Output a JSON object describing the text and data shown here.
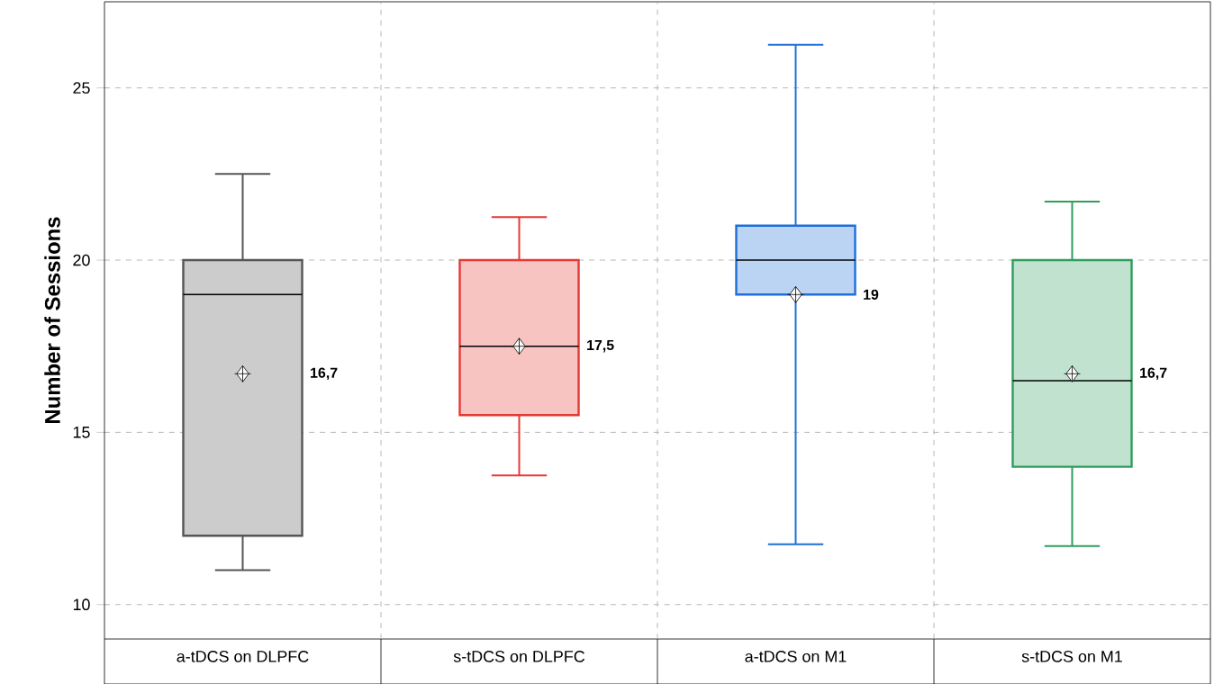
{
  "chart_data": {
    "type": "box",
    "ylabel": "Number of Sessions",
    "categories": [
      "a-tDCS on DLPFC",
      "s-tDCS on DLPFC",
      "a-tDCS on M1",
      "s-tDCS on M1"
    ],
    "boxes": [
      {
        "low": 11,
        "q1": 12,
        "median": 19,
        "q3": 20,
        "high": 22.5,
        "mean": 16.7
      },
      {
        "low": 13.75,
        "q1": 15.5,
        "median": 17.5,
        "q3": 20,
        "high": 21.25,
        "mean": 17.5
      },
      {
        "low": 11.75,
        "q1": 19,
        "median": 20,
        "q3": 21,
        "high": 26.25,
        "mean": 19
      },
      {
        "low": 11.7,
        "q1": 14,
        "median": 16.5,
        "q3": 20,
        "high": 21.7,
        "mean": 16.7
      }
    ],
    "colors": [
      "#555555",
      "#e53935",
      "#1e6fd9",
      "#2e9e5e"
    ],
    "ylim": [
      9,
      27.5
    ],
    "yticks": [
      10,
      15,
      20,
      25
    ],
    "grid": true,
    "annotations": [
      "16,7",
      "17,5",
      "19",
      "16,7"
    ]
  }
}
